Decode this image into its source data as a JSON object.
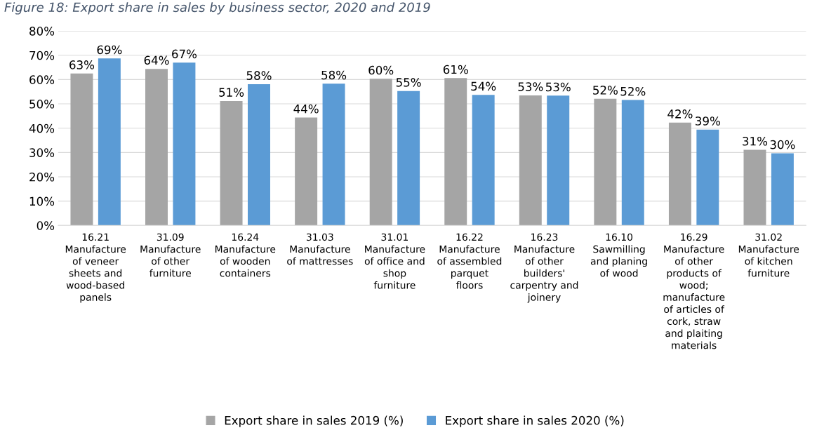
{
  "chart_data": {
    "type": "bar",
    "title": "Figure 18: Export share in sales by business sector, 2020 and 2019",
    "categories": [
      "16.21\nManufacture\nof veneer\nsheets and\nwood-based\npanels",
      "31.09\nManufacture\nof other\nfurniture",
      "16.24\nManufacture\nof wooden\ncontainers",
      "31.03\nManufacture\nof mattresses",
      "31.01\nManufacture\nof office and\nshop\nfurniture",
      "16.22\nManufacture\nof assembled\nparquet\nfloors",
      "16.23\nManufacture\nof other\nbuilders'\ncarpentry and\njoinery",
      "16.10\nSawmilling\nand planing\nof wood",
      "16.29\nManufacture\nof other\nproducts of\nwood;\nmanufacture\nof articles of\ncork, straw\nand plaiting\nmaterials",
      "31.02\nManufacture\nof kitchen\nfurniture"
    ],
    "series": [
      {
        "name": "Export share in sales 2019 (%)",
        "color": "#a5a5a5",
        "values": [
          62.5,
          64.4,
          51.2,
          44.4,
          60.3,
          60.6,
          53.5,
          52.1,
          42.3,
          31.1
        ],
        "value_labels": [
          "63%",
          "64%",
          "51%",
          "44%",
          "60%",
          "61%",
          "53%",
          "52%",
          "42%",
          "31%"
        ]
      },
      {
        "name": "Export share in sales 2020 (%)",
        "color": "#5b9bd5",
        "values": [
          68.7,
          67.0,
          58.1,
          58.3,
          55.3,
          53.7,
          53.4,
          51.6,
          39.4,
          29.7
        ],
        "value_labels": [
          "69%",
          "67%",
          "58%",
          "58%",
          "55%",
          "54%",
          "53%",
          "52%",
          "39%",
          "30%"
        ]
      }
    ],
    "ylim": [
      0,
      80
    ],
    "yticks": [
      {
        "value": 0,
        "label": "0%"
      },
      {
        "value": 10,
        "label": "10%"
      },
      {
        "value": 20,
        "label": "20%"
      },
      {
        "value": 30,
        "label": "30%"
      },
      {
        "value": 40,
        "label": "40%"
      },
      {
        "value": 50,
        "label": "50%"
      },
      {
        "value": 60,
        "label": "60%"
      },
      {
        "value": 70,
        "label": "70%"
      },
      {
        "value": 80,
        "label": "80%"
      }
    ],
    "grid": "y",
    "legend": "bottom"
  }
}
